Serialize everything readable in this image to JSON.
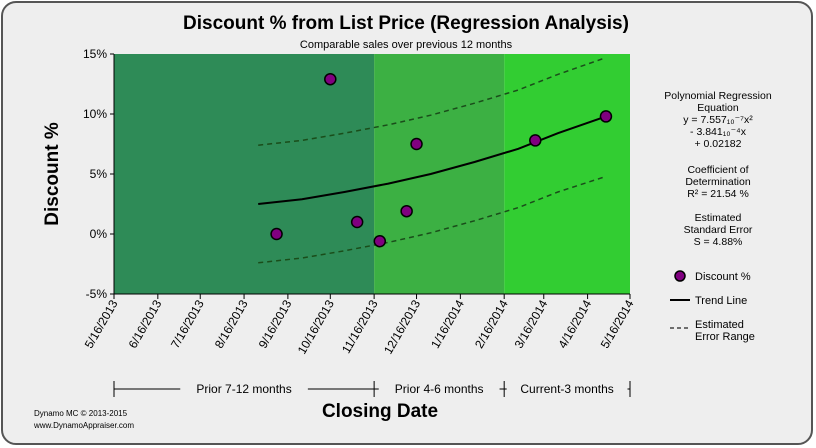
{
  "colors": {
    "panel_bg": "#eeeeee",
    "panel_border": "#555555",
    "band_prior_7_12": "#2e8b57",
    "band_prior_4_6": "#3cb043",
    "band_current_3": "#32cd32",
    "point_fill": "#800080",
    "trend_line": "#000000",
    "error_line": "#1a4d1a"
  },
  "chart_data": {
    "type": "scatter",
    "title": "Discount % from List Price (Regression Analysis)",
    "subtitle": "Comparable sales over previous 12 months",
    "xlabel": "Closing Date",
    "ylabel": "Discount %",
    "x_ticks": [
      "5/16/2013",
      "6/16/2013",
      "7/16/2013",
      "8/16/2013",
      "9/16/2013",
      "10/16/2013",
      "11/16/2013",
      "12/16/2013",
      "1/16/2014",
      "2/16/2014",
      "3/16/2014",
      "4/16/2014",
      "5/16/2014"
    ],
    "y_ticks": [
      "-5%",
      "0%",
      "5%",
      "10%",
      "15%"
    ],
    "ylim": [
      -5,
      15
    ],
    "grid": false,
    "bands": [
      {
        "label": "Prior 7-12 months",
        "from": "5/16/2013",
        "to": "11/16/2013",
        "color": "#2e8b57"
      },
      {
        "label": "Prior 4-6 months",
        "from": "11/16/2013",
        "to": "2/16/2014",
        "color": "#3cb043"
      },
      {
        "label": "Current-3 months",
        "from": "2/16/2014",
        "to": "5/16/2014",
        "color": "#32cd32"
      }
    ],
    "series": [
      {
        "name": "Discount %",
        "kind": "points",
        "points": [
          {
            "x": "2013-09-08",
            "y": 0.0
          },
          {
            "x": "2013-10-16",
            "y": 12.9
          },
          {
            "x": "2013-11-04",
            "y": 1.0
          },
          {
            "x": "2013-11-20",
            "y": -0.6
          },
          {
            "x": "2013-12-09",
            "y": 1.9
          },
          {
            "x": "2013-12-16",
            "y": 7.5
          },
          {
            "x": "2014-03-10",
            "y": 7.8
          },
          {
            "x": "2014-04-29",
            "y": 9.8
          }
        ]
      },
      {
        "name": "Trend Line",
        "kind": "line",
        "points": [
          {
            "x": "2013-08-26",
            "y": 2.5
          },
          {
            "x": "2013-09-26",
            "y": 2.9
          },
          {
            "x": "2013-10-26",
            "y": 3.5
          },
          {
            "x": "2013-11-26",
            "y": 4.2
          },
          {
            "x": "2013-12-26",
            "y": 5.0
          },
          {
            "x": "2014-01-26",
            "y": 6.0
          },
          {
            "x": "2014-02-26",
            "y": 7.1
          },
          {
            "x": "2014-03-26",
            "y": 8.4
          },
          {
            "x": "2014-04-29",
            "y": 9.8
          }
        ]
      },
      {
        "name": "Estimated Error Range",
        "kind": "dashed",
        "points": [
          {
            "x": "2013-08-26",
            "y": 7.4
          },
          {
            "x": "2013-09-26",
            "y": 7.8
          },
          {
            "x": "2013-10-26",
            "y": 8.4
          },
          {
            "x": "2013-11-26",
            "y": 9.1
          },
          {
            "x": "2013-12-26",
            "y": 9.9
          },
          {
            "x": "2014-01-26",
            "y": 10.9
          },
          {
            "x": "2014-02-26",
            "y": 12.0
          },
          {
            "x": "2014-03-26",
            "y": 13.3
          },
          {
            "x": "2014-04-29",
            "y": 14.7
          }
        ]
      },
      {
        "name": "Estimated Error Range",
        "kind": "dashed",
        "points": [
          {
            "x": "2013-08-26",
            "y": -2.4
          },
          {
            "x": "2013-09-26",
            "y": -2.0
          },
          {
            "x": "2013-10-26",
            "y": -1.4
          },
          {
            "x": "2013-11-26",
            "y": -0.7
          },
          {
            "x": "2013-12-26",
            "y": 0.1
          },
          {
            "x": "2014-01-26",
            "y": 1.1
          },
          {
            "x": "2014-02-26",
            "y": 2.2
          },
          {
            "x": "2014-03-26",
            "y": 3.5
          },
          {
            "x": "2014-04-29",
            "y": 4.8
          }
        ]
      }
    ],
    "legend_position": "right",
    "legend": [
      {
        "label": "Discount %",
        "symbol": "point"
      },
      {
        "label": "Trend Line",
        "symbol": "line"
      },
      {
        "label": "Estimated Error Range",
        "symbol": "dashed"
      }
    ],
    "stats": {
      "heading": "Polynomial Regression Equation",
      "equation": [
        "y = 7.557₁₀⁻⁷x²",
        "- 3.841₁₀⁻⁴x",
        "+ 0.02182"
      ],
      "r2_heading": "Coefficient of Determination",
      "r2": "R² = 21.54 %",
      "se_heading": "Estimated Standard Error",
      "se": "S = 4.88%"
    },
    "footer": [
      "Dynamo MC   © 2013-2015",
      "www.DynamoAppraiser.com"
    ]
  }
}
